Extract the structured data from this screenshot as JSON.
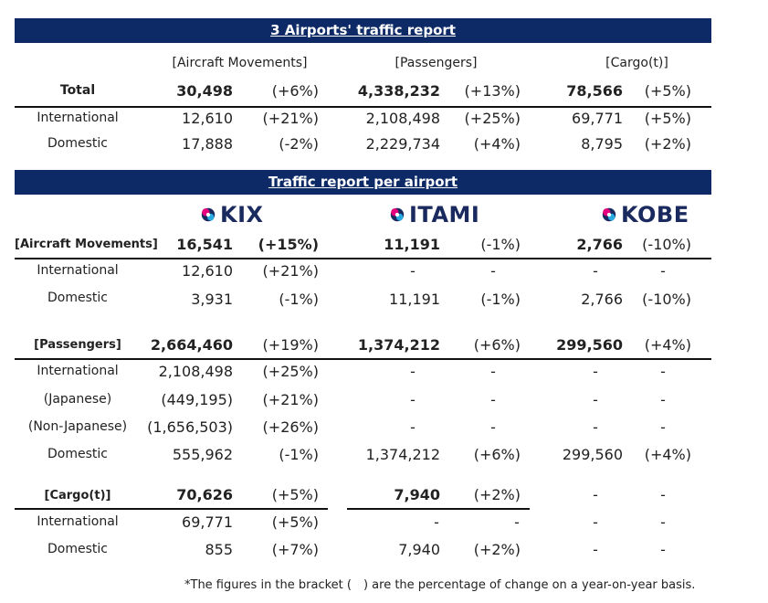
{
  "summary": {
    "title": "3 Airports' traffic report",
    "headers": {
      "aircraft": "[Aircraft Movements]",
      "passengers": "[Passengers]",
      "cargo": "[Cargo(t)]"
    },
    "rows": [
      {
        "label": "Total",
        "aircraft": "30,498",
        "aircraft_chg": "(+6%)",
        "passengers": "4,338,232",
        "passengers_chg": "(+13%)",
        "cargo": "78,566",
        "cargo_chg": "(+5%)"
      },
      {
        "label": "International",
        "aircraft": "12,610",
        "aircraft_chg": "(+21%)",
        "passengers": "2,108,498",
        "passengers_chg": "(+25%)",
        "cargo": "69,771",
        "cargo_chg": "(+5%)"
      },
      {
        "label": "Domestic",
        "aircraft": "17,888",
        "aircraft_chg": "(-2%)",
        "passengers": "2,229,734",
        "passengers_chg": "(+4%)",
        "cargo": "8,795",
        "cargo_chg": "(+2%)"
      }
    ]
  },
  "per_airport": {
    "title": "Traffic report per airport",
    "logos": {
      "kix": "KIX",
      "itami": "ITAMI",
      "kobe": "KOBE"
    },
    "logo_colors": {
      "navy": "#1a2a5e",
      "pink": "#e6007e",
      "cyan": "#29a9e1"
    },
    "aircraft": {
      "header": "[Aircraft Movements]",
      "total": {
        "kix": "16,541",
        "kix_chg": "(+15%)",
        "itami": "11,191",
        "itami_chg": "(-1%)",
        "kobe": "2,766",
        "kobe_chg": "(-10%)"
      },
      "rows": [
        {
          "label": "International",
          "kix": "12,610",
          "kix_chg": "(+21%)",
          "itami": "-",
          "itami_chg": "-",
          "kobe": "-",
          "kobe_chg": "-"
        },
        {
          "label": "Domestic",
          "kix": "3,931",
          "kix_chg": "(-1%)",
          "itami": "11,191",
          "itami_chg": "(-1%)",
          "kobe": "2,766",
          "kobe_chg": "(-10%)"
        }
      ]
    },
    "passengers": {
      "header": "[Passengers]",
      "total": {
        "kix": "2,664,460",
        "kix_chg": "(+19%)",
        "itami": "1,374,212",
        "itami_chg": "(+6%)",
        "kobe": "299,560",
        "kobe_chg": "(+4%)"
      },
      "rows": [
        {
          "label": "International",
          "kix": "2,108,498",
          "kix_chg": "(+25%)",
          "itami": "-",
          "itami_chg": "-",
          "kobe": "-",
          "kobe_chg": "-"
        },
        {
          "label": "(Japanese)",
          "kix": "(449,195)",
          "kix_chg": "(+21%)",
          "itami": "-",
          "itami_chg": "-",
          "kobe": "-",
          "kobe_chg": "-"
        },
        {
          "label": "(Non-Japanese)",
          "kix": "(1,656,503)",
          "kix_chg": "(+26%)",
          "itami": "-",
          "itami_chg": "-",
          "kobe": "-",
          "kobe_chg": "-"
        },
        {
          "label": "Domestic",
          "kix": "555,962",
          "kix_chg": "(-1%)",
          "itami": "1,374,212",
          "itami_chg": "(+6%)",
          "kobe": "299,560",
          "kobe_chg": "(+4%)"
        }
      ]
    },
    "cargo": {
      "header": "[Cargo(t)]",
      "total": {
        "kix": "70,626",
        "kix_chg": "(+5%)",
        "itami": "7,940",
        "itami_chg": "(+2%)",
        "kobe": "-",
        "kobe_chg": "-"
      },
      "rows": [
        {
          "label": "International",
          "kix": "69,771",
          "kix_chg": "(+5%)",
          "itami": "-",
          "itami_chg": "-",
          "kobe": "-",
          "kobe_chg": "-"
        },
        {
          "label": "Domestic",
          "kix": "855",
          "kix_chg": "(+7%)",
          "itami": "7,940",
          "itami_chg": "(+2%)",
          "kobe": "-",
          "kobe_chg": "-"
        }
      ]
    }
  },
  "footnote": "*The figures in the bracket (　) are the percentage of change on a year-on-year basis."
}
